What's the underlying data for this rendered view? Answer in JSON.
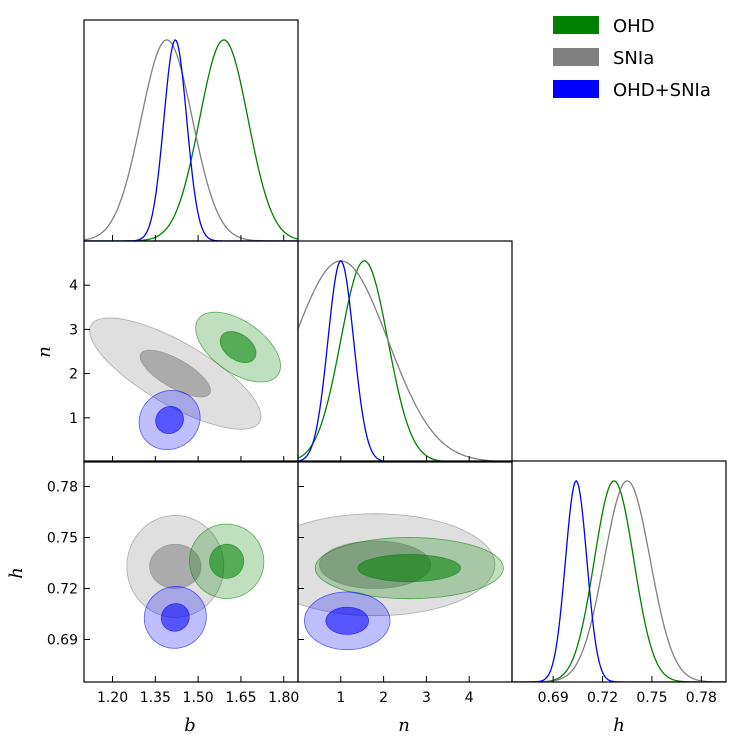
{
  "chart_data": {
    "type": "corner",
    "title": "",
    "parameters": [
      {
        "id": "b",
        "label": "b",
        "ticks": [
          "1.20",
          "1.35",
          "1.50",
          "1.65",
          "1.80"
        ],
        "tick_values": [
          1.2,
          1.35,
          1.5,
          1.65,
          1.8
        ],
        "range": [
          1.1,
          1.85
        ]
      },
      {
        "id": "n",
        "label": "n",
        "ticks": [
          "1",
          "2",
          "3",
          "4"
        ],
        "tick_values": [
          1,
          2,
          3,
          4
        ],
        "range": [
          0,
          5
        ]
      },
      {
        "id": "h",
        "label": "h",
        "ticks": [
          "0.69",
          "0.72",
          "0.75",
          "0.78"
        ],
        "tick_values": [
          0.69,
          0.72,
          0.75,
          0.78
        ],
        "range": [
          0.665,
          0.795
        ]
      }
    ],
    "legend": {
      "position": "top-right",
      "entries": [
        {
          "name": "OHD",
          "color": "#008000"
        },
        {
          "name": "SNIa",
          "color": "#808080"
        },
        {
          "name": "OHD+SNIa",
          "color": "#0000ff"
        }
      ]
    },
    "series": [
      {
        "name": "OHD",
        "color": "#008000",
        "peak": {
          "b": 1.59,
          "n": 1.55,
          "h": 0.727
        },
        "sigma": {
          "b": 0.085,
          "n": 0.55,
          "h": 0.012
        },
        "contours": {
          "b-n": {
            "center": [
              1.64,
              2.6
            ],
            "inner_radii": [
              0.045,
              0.45
            ],
            "outer_radii": [
              0.09,
              1.1
            ],
            "tilt_deg": -55
          },
          "b-h": {
            "center": [
              1.6,
              0.736
            ],
            "inner_radii": [
              0.06,
              0.01
            ],
            "outer_radii": [
              0.13,
              0.022
            ],
            "tilt_deg": -40
          },
          "n-h": {
            "center": [
              2.6,
              0.732
            ],
            "inner_radii": [
              1.2,
              0.008
            ],
            "outer_radii": [
              2.2,
              0.018
            ],
            "tilt_deg": 0
          }
        }
      },
      {
        "name": "SNIa",
        "color": "#808080",
        "peak": {
          "b": 1.39,
          "n": 1.0,
          "h": 0.735
        },
        "sigma": {
          "b": 0.09,
          "n": 1.1,
          "h": 0.014
        },
        "contours": {
          "b-n": {
            "center": [
              1.42,
              2.0
            ],
            "inner_radii": [
              0.05,
              0.9
            ],
            "outer_radii": [
              0.11,
              2.2
            ],
            "tilt_deg": -60
          },
          "b-h": {
            "center": [
              1.42,
              0.733
            ],
            "inner_radii": [
              0.09,
              0.013
            ],
            "outer_radii": [
              0.17,
              0.03
            ],
            "tilt_deg": 0
          },
          "n-h": {
            "center": [
              1.8,
              0.734
            ],
            "inner_radii": [
              1.3,
              0.014
            ],
            "outer_radii": [
              2.8,
              0.03
            ],
            "tilt_deg": 0
          }
        }
      },
      {
        "name": "OHD+SNIa",
        "color": "#0000ff",
        "peak": {
          "b": 1.42,
          "n": 1.0,
          "h": 0.704
        },
        "sigma": {
          "b": 0.04,
          "n": 0.3,
          "h": 0.0065
        },
        "contours": {
          "b-n": {
            "center": [
              1.4,
              0.95
            ],
            "inner_radii": [
              0.05,
              0.3
            ],
            "outer_radii": [
              0.11,
              0.65
            ],
            "tilt_deg": -35
          },
          "b-h": {
            "center": [
              1.42,
              0.703
            ],
            "inner_radii": [
              0.05,
              0.008
            ],
            "outer_radii": [
              0.11,
              0.018
            ],
            "tilt_deg": -40
          },
          "n-h": {
            "center": [
              1.15,
              0.701
            ],
            "inner_radii": [
              0.5,
              0.008
            ],
            "outer_radii": [
              1.0,
              0.017
            ],
            "tilt_deg": 0
          }
        }
      }
    ]
  }
}
